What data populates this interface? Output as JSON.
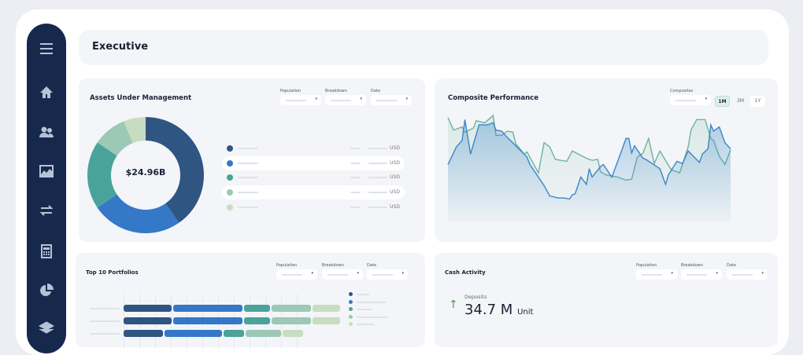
{
  "header": {
    "title": "Executive"
  },
  "sidebar": {
    "items": [
      {
        "icon": "menu-icon"
      },
      {
        "icon": "home-icon"
      },
      {
        "icon": "users-icon"
      },
      {
        "icon": "chart-icon"
      },
      {
        "icon": "transfer-icon"
      },
      {
        "icon": "calculator-icon"
      },
      {
        "icon": "pie-chart-icon"
      },
      {
        "icon": "layers-icon"
      }
    ]
  },
  "filters": {
    "population": "Population",
    "breakdown": "Breakdown",
    "date": "Date",
    "composites": "Composites"
  },
  "aum": {
    "title": "Assets Under Management",
    "total": "$24.96B",
    "unit": "USD",
    "colors": [
      "#2f5583",
      "#3578c8",
      "#4aa39b",
      "#9cc8b6",
      "#c8ddbf"
    ]
  },
  "composite": {
    "title": "Composite Performance",
    "ranges": [
      "1M",
      "3M",
      "1Y"
    ],
    "active_range": "1M"
  },
  "top10": {
    "title": "Top 10 Portfolios"
  },
  "cash": {
    "title": "Cash Activity",
    "label": "Deposits",
    "value": "34.7 M",
    "unit": "Unit",
    "trend": "up"
  },
  "chart_data": [
    {
      "type": "pie",
      "title": "Assets Under Management",
      "center_label": "$24.96B",
      "values": [
        40.3,
        25.3,
        18.9,
        9.4,
        6.1
      ],
      "colors": [
        "#2f5583",
        "#3578c8",
        "#4aa39b",
        "#9cc8b6",
        "#c8ddbf"
      ]
    },
    {
      "type": "area",
      "title": "Composite Performance",
      "series": [
        {
          "color": "#3a86c8",
          "points": [
            [
              0,
              53
            ],
            [
              3,
              70
            ],
            [
              5,
              76
            ],
            [
              6,
              96
            ],
            [
              8,
              63
            ],
            [
              11,
              91
            ],
            [
              14,
              91
            ],
            [
              16,
              93
            ],
            [
              17,
              86
            ],
            [
              19,
              85
            ],
            [
              21,
              79
            ],
            [
              24,
              71
            ],
            [
              27,
              63
            ],
            [
              28,
              60
            ],
            [
              29,
              53
            ],
            [
              34,
              33
            ],
            [
              36,
              23
            ],
            [
              39,
              21
            ],
            [
              41,
              21
            ],
            [
              43,
              20
            ],
            [
              44,
              24
            ],
            [
              45,
              25
            ],
            [
              47,
              41
            ],
            [
              49,
              34
            ],
            [
              50,
              49
            ],
            [
              51,
              41
            ],
            [
              54,
              51
            ],
            [
              55,
              53
            ],
            [
              58,
              41
            ],
            [
              61,
              63
            ],
            [
              63,
              78
            ],
            [
              64,
              78
            ],
            [
              65,
              64
            ],
            [
              66,
              71
            ],
            [
              69,
              59
            ],
            [
              70,
              58
            ],
            [
              75,
              49
            ],
            [
              77,
              34
            ],
            [
              78,
              43
            ],
            [
              81,
              56
            ],
            [
              83,
              54
            ],
            [
              85,
              66
            ],
            [
              89,
              55
            ],
            [
              90,
              63
            ],
            [
              92,
              68
            ],
            [
              93,
              91
            ],
            [
              94,
              85
            ],
            [
              96,
              89
            ],
            [
              98,
              74
            ],
            [
              100,
              68
            ]
          ]
        },
        {
          "color": "#6fb39a",
          "points": [
            [
              0,
              98
            ],
            [
              2,
              86
            ],
            [
              5,
              89
            ],
            [
              6,
              84
            ],
            [
              9,
              88
            ],
            [
              10,
              95
            ],
            [
              13,
              93
            ],
            [
              16,
              100
            ],
            [
              17,
              81
            ],
            [
              19,
              81
            ],
            [
              21,
              85
            ],
            [
              23,
              84
            ],
            [
              24,
              73
            ],
            [
              27,
              63
            ],
            [
              28,
              65
            ],
            [
              32,
              45
            ],
            [
              34,
              74
            ],
            [
              36,
              70
            ],
            [
              38,
              58
            ],
            [
              42,
              56
            ],
            [
              44,
              66
            ],
            [
              49,
              59
            ],
            [
              51,
              57
            ],
            [
              53,
              58
            ],
            [
              54,
              46
            ],
            [
              56,
              43
            ],
            [
              60,
              41
            ],
            [
              63,
              38
            ],
            [
              65,
              39
            ],
            [
              67,
              60
            ],
            [
              69,
              64
            ],
            [
              71,
              78
            ],
            [
              73,
              54
            ],
            [
              75,
              66
            ],
            [
              79,
              48
            ],
            [
              82,
              45
            ],
            [
              85,
              70
            ],
            [
              86,
              86
            ],
            [
              88,
              96
            ],
            [
              91,
              96
            ],
            [
              93,
              78
            ],
            [
              94,
              76
            ],
            [
              96,
              61
            ],
            [
              98,
              53
            ],
            [
              100,
              67
            ]
          ]
        }
      ]
    },
    {
      "type": "bar",
      "orientation": "horizontal",
      "stacked": true,
      "title": "Top 10 Portfolios",
      "series_colors": [
        "#2f5583",
        "#3578c8",
        "#4aa39b",
        "#9cc8b6",
        "#c8ddbf"
      ],
      "rows": [
        [
          61,
          88,
          33,
          50,
          35
        ],
        [
          61,
          88,
          33,
          50,
          35
        ],
        [
          50,
          73,
          26,
          45,
          26
        ]
      ]
    }
  ]
}
